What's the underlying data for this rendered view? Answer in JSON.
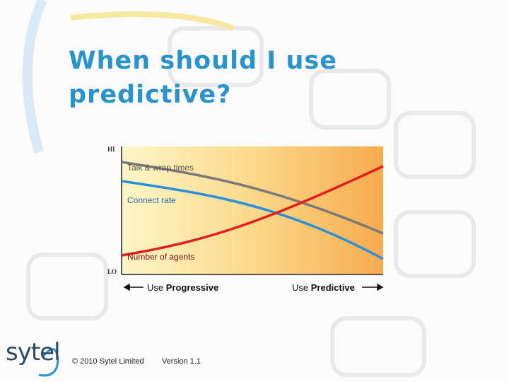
{
  "header": {
    "title_lines": [
      "When should I use",
      "predictive?"
    ]
  },
  "diagram": {
    "axis_high": "HI",
    "axis_low": "LO",
    "curves": [
      "Talk & wrap times",
      "Connect rate",
      "Number of agents"
    ],
    "directions": [
      {
        "prefix": "Use",
        "emphasis": "Progressive"
      },
      {
        "prefix": "Use",
        "emphasis": "Predictive"
      }
    ]
  },
  "footer": {
    "logo": "sytel",
    "copyright": "© 2010 Sytel Limited",
    "version": "Version 1.1"
  }
}
